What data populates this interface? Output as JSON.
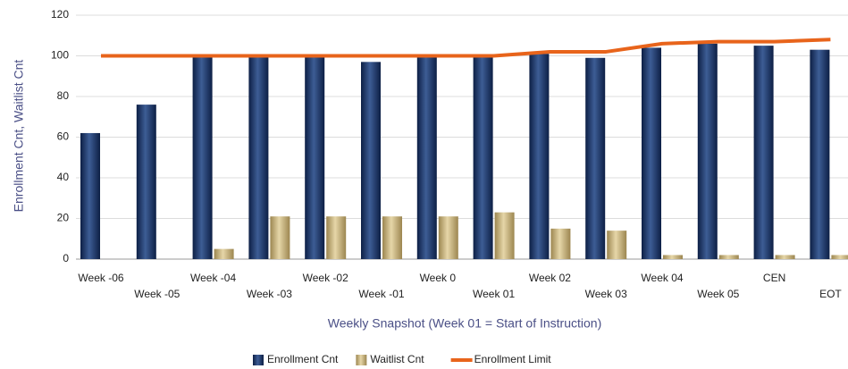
{
  "chart_data": {
    "type": "bar_line",
    "categories": [
      "Week -06",
      "Week -05",
      "Week -04",
      "Week -03",
      "Week -02",
      "Week -01",
      "Week 0",
      "Week 01",
      "Week 02",
      "Week 03",
      "Week 04",
      "Week 05",
      "CEN",
      "EOT"
    ],
    "series": [
      {
        "name": "Enrollment Cnt",
        "kind": "bar",
        "color": "#1f3a6b",
        "values": [
          62,
          76,
          100,
          100,
          100,
          97,
          100,
          100,
          101,
          99,
          104,
          106,
          105,
          103
        ]
      },
      {
        "name": "Waitlist Cnt",
        "kind": "bar",
        "color": "#c9b47c",
        "values": [
          0,
          0,
          5,
          21,
          21,
          21,
          21,
          23,
          15,
          14,
          2,
          2,
          2,
          2
        ]
      },
      {
        "name": "Enrollment Limit",
        "kind": "line",
        "color": "#e8641b",
        "values": [
          100,
          100,
          100,
          100,
          100,
          100,
          100,
          100,
          102,
          102,
          106,
          107,
          107,
          108
        ]
      }
    ],
    "ylabel": "Enrollment Cnt, Waitlist Cnt",
    "xlabel": "Weekly Snapshot (Week 01 = Start of Instruction)",
    "ylim": [
      0,
      120
    ],
    "yticks": [
      0,
      20,
      40,
      60,
      80,
      100,
      120
    ],
    "grid": true
  }
}
